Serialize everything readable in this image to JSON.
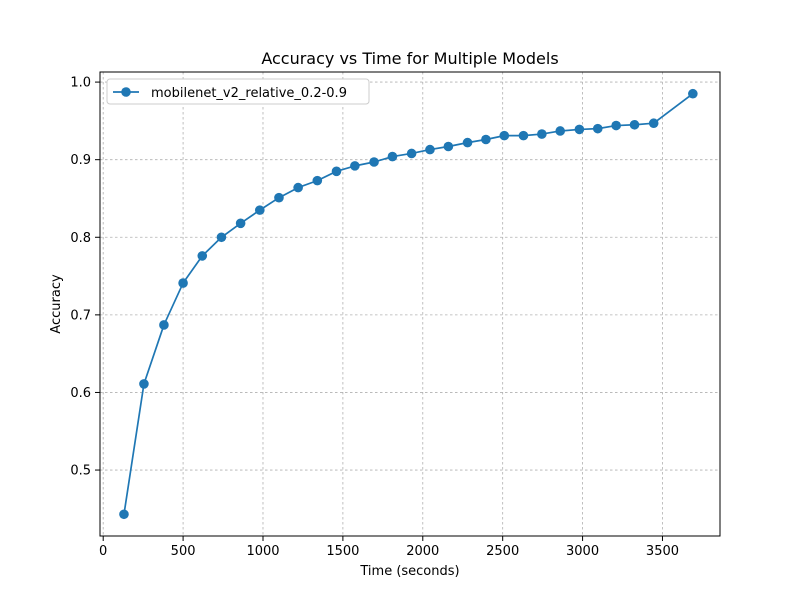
{
  "chart_data": {
    "type": "line",
    "title": "Accuracy vs Time for Multiple Models",
    "xlabel": "Time (seconds)",
    "ylabel": "Accuracy",
    "xlim": [
      -20,
      3860
    ],
    "ylim": [
      0.415,
      1.013
    ],
    "x_ticks": [
      0,
      500,
      1000,
      1500,
      2000,
      2500,
      3000,
      3500
    ],
    "y_ticks": [
      0.5,
      0.6,
      0.7,
      0.8,
      0.9,
      1.0
    ],
    "x_tick_labels": [
      "0",
      "500",
      "1000",
      "1500",
      "2000",
      "2500",
      "3000",
      "3500"
    ],
    "y_tick_labels": [
      "0.5",
      "0.6",
      "0.7",
      "0.8",
      "0.9",
      "1.0"
    ],
    "grid": true,
    "legend_position": "top-left",
    "series": [
      {
        "name": "mobilenet_v2_relative_0.2-0.9",
        "color": "#1f77b4",
        "marker": "circle",
        "x": [
          130,
          255,
          380,
          500,
          620,
          740,
          860,
          980,
          1100,
          1220,
          1340,
          1460,
          1575,
          1695,
          1810,
          1930,
          2045,
          2160,
          2280,
          2395,
          2510,
          2630,
          2745,
          2860,
          2980,
          3095,
          3210,
          3325,
          3445,
          3690
        ],
        "y": [
          0.443,
          0.611,
          0.687,
          0.741,
          0.776,
          0.8,
          0.818,
          0.835,
          0.851,
          0.864,
          0.873,
          0.885,
          0.892,
          0.897,
          0.904,
          0.908,
          0.913,
          0.917,
          0.922,
          0.926,
          0.931,
          0.931,
          0.933,
          0.937,
          0.939,
          0.94,
          0.944,
          0.945,
          0.947,
          0.985
        ]
      }
    ]
  }
}
